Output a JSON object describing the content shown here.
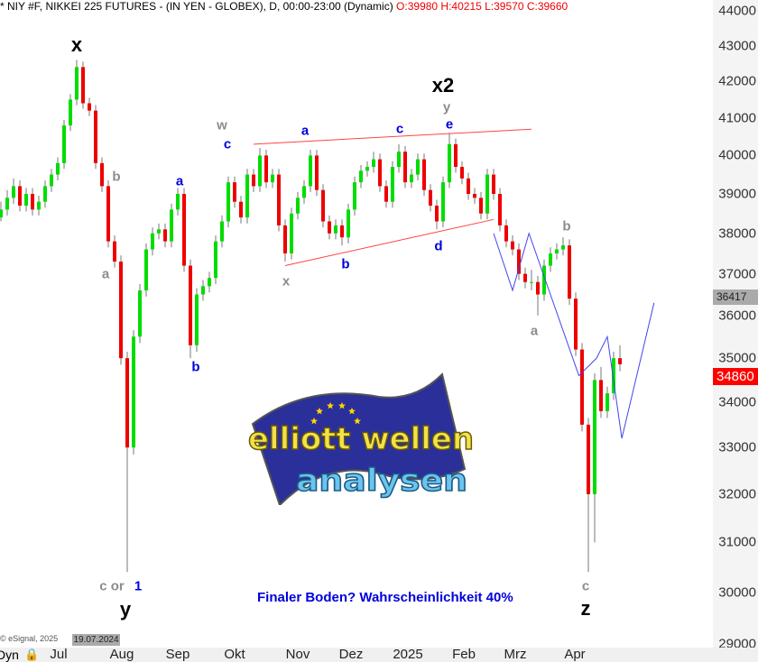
{
  "header": {
    "title": "* NIY #F, NIKKEI 225 FUTURES - (IN YEN - GLOBEX), D, 00:00-23:00 (Dynamic)",
    "ohlc": "O:39980 H:40215 L:39570 C:39660"
  },
  "footer": {
    "copyright": "© eSignal, 2025",
    "left_label": "Dyn",
    "date_box": "19.07.2024"
  },
  "logo": {
    "text_top": "elliott wellen",
    "text_bottom": "analysen"
  },
  "note": "Finaler Boden? Wahrscheinlichkeit 40%",
  "colors": {
    "up": "#00dd00",
    "down": "#ee0000",
    "triangle": "#ff4444",
    "projection": "#4444ee",
    "wave_gray": "#8c8c8c",
    "wave_blue": "#0000dd"
  },
  "chart_data": {
    "type": "candlestick",
    "scale": "log",
    "ylim": [
      29000,
      44000
    ],
    "y_ticks": [
      "44000",
      "43000",
      "42000",
      "41000",
      "40000",
      "39000",
      "38000",
      "37000",
      "36000",
      "35000",
      "34000",
      "33000",
      "32000",
      "31000",
      "30000",
      "29000"
    ],
    "x_ticks": [
      "Jul",
      "Aug",
      "Sep",
      "Okt",
      "Nov",
      "Dez",
      "2025",
      "Feb",
      "Mrz",
      "Apr"
    ],
    "price_badges": [
      {
        "value": "36417",
        "color": "#aaaaaa"
      },
      {
        "value": "34860",
        "color": "#ff0000"
      }
    ],
    "candles": [
      [
        38400,
        38800,
        38300,
        38600
      ],
      [
        38600,
        39100,
        38450,
        38900
      ],
      [
        38900,
        39400,
        38750,
        39200
      ],
      [
        39200,
        39350,
        38550,
        38700
      ],
      [
        38700,
        39150,
        38550,
        39000
      ],
      [
        39000,
        39150,
        38450,
        38600
      ],
      [
        38600,
        38950,
        38450,
        38800
      ],
      [
        38800,
        39350,
        38650,
        39200
      ],
      [
        39200,
        39650,
        39050,
        39500
      ],
      [
        39500,
        39950,
        39350,
        39800
      ],
      [
        39800,
        40950,
        39650,
        40800
      ],
      [
        40800,
        41650,
        40650,
        41500
      ],
      [
        41500,
        42600,
        41350,
        42400
      ],
      [
        42400,
        42550,
        41250,
        41400
      ],
      [
        41400,
        41550,
        41050,
        41200
      ],
      [
        41200,
        41350,
        39650,
        39800
      ],
      [
        39800,
        39950,
        39050,
        39200
      ],
      [
        39200,
        39350,
        37650,
        37800
      ],
      [
        37800,
        37950,
        37150,
        37300
      ],
      [
        37300,
        37450,
        34850,
        35000
      ],
      [
        35000,
        35150,
        30400,
        33000
      ],
      [
        33000,
        35650,
        32850,
        35500
      ],
      [
        35500,
        36750,
        35350,
        36600
      ],
      [
        36600,
        37750,
        36450,
        37600
      ],
      [
        37600,
        38150,
        37450,
        38000
      ],
      [
        38000,
        38250,
        37850,
        38100
      ],
      [
        38100,
        38250,
        37650,
        37800
      ],
      [
        37800,
        38750,
        37650,
        38600
      ],
      [
        38600,
        39150,
        38450,
        39000
      ],
      [
        39000,
        39150,
        37050,
        37200
      ],
      [
        37200,
        37350,
        35000,
        35300
      ],
      [
        35300,
        36650,
        35150,
        36500
      ],
      [
        36500,
        36850,
        36350,
        36700
      ],
      [
        36700,
        37050,
        36550,
        36900
      ],
      [
        36900,
        37950,
        36750,
        37800
      ],
      [
        37800,
        38450,
        37650,
        38300
      ],
      [
        38300,
        39450,
        38150,
        39300
      ],
      [
        39300,
        39450,
        38650,
        38800
      ],
      [
        38800,
        38950,
        38250,
        38400
      ],
      [
        38400,
        39650,
        38250,
        39500
      ],
      [
        39500,
        39650,
        39050,
        39200
      ],
      [
        39200,
        40200,
        39050,
        40000
      ],
      [
        40000,
        40150,
        39150,
        39300
      ],
      [
        39300,
        39650,
        39150,
        39500
      ],
      [
        39500,
        39650,
        38050,
        38200
      ],
      [
        38200,
        38350,
        37300,
        37500
      ],
      [
        37500,
        38650,
        37350,
        38500
      ],
      [
        38500,
        39050,
        38350,
        38900
      ],
      [
        38900,
        39350,
        38750,
        39200
      ],
      [
        39200,
        40150,
        39050,
        40000
      ],
      [
        40000,
        40150,
        38950,
        39100
      ],
      [
        39100,
        39250,
        38150,
        38300
      ],
      [
        38300,
        38450,
        37850,
        38000
      ],
      [
        38000,
        38350,
        37850,
        38200
      ],
      [
        38200,
        38350,
        37700,
        37900
      ],
      [
        37900,
        38750,
        37750,
        38600
      ],
      [
        38600,
        39450,
        38450,
        39300
      ],
      [
        39300,
        39750,
        39150,
        39600
      ],
      [
        39600,
        39850,
        39450,
        39700
      ],
      [
        39700,
        40100,
        39550,
        39900
      ],
      [
        39900,
        40050,
        39050,
        39200
      ],
      [
        39200,
        39350,
        38650,
        38800
      ],
      [
        38800,
        39850,
        38650,
        39700
      ],
      [
        39700,
        40300,
        39550,
        40100
      ],
      [
        40100,
        40250,
        39150,
        39300
      ],
      [
        39300,
        39650,
        39150,
        39500
      ],
      [
        39500,
        40050,
        39350,
        39900
      ],
      [
        39900,
        40050,
        38950,
        39100
      ],
      [
        39100,
        39250,
        38550,
        38700
      ],
      [
        38700,
        38850,
        38100,
        38300
      ],
      [
        38300,
        39450,
        38150,
        39300
      ],
      [
        39300,
        40600,
        39150,
        40300
      ],
      [
        40300,
        40450,
        39550,
        39700
      ],
      [
        39700,
        39850,
        39250,
        39400
      ],
      [
        39400,
        39550,
        38850,
        39000
      ],
      [
        39000,
        39150,
        38750,
        38900
      ],
      [
        38900,
        39050,
        38350,
        38500
      ],
      [
        38500,
        39650,
        38350,
        39500
      ],
      [
        39500,
        39650,
        38850,
        39000
      ],
      [
        39000,
        39150,
        38050,
        38200
      ],
      [
        38200,
        38350,
        37650,
        37800
      ],
      [
        37800,
        37950,
        37450,
        37600
      ],
      [
        37600,
        37750,
        36850,
        37000
      ],
      [
        37000,
        37150,
        36650,
        36800
      ],
      [
        36800,
        37100,
        36600,
        36800
      ],
      [
        36800,
        36950,
        36000,
        36500
      ],
      [
        36500,
        37350,
        36350,
        37200
      ],
      [
        37200,
        37650,
        37050,
        37500
      ],
      [
        37500,
        37750,
        37350,
        37600
      ],
      [
        37600,
        37900,
        37450,
        37700
      ],
      [
        37700,
        37850,
        36250,
        36400
      ],
      [
        36400,
        36550,
        35050,
        35200
      ],
      [
        35200,
        35350,
        33350,
        33500
      ],
      [
        33500,
        33650,
        30400,
        32000
      ],
      [
        32000,
        34650,
        31000,
        34500
      ],
      [
        34500,
        34800,
        33650,
        33800
      ],
      [
        33800,
        34350,
        33650,
        34200
      ],
      [
        34200,
        35150,
        34050,
        35000
      ],
      [
        35000,
        35300,
        34700,
        34860
      ]
    ],
    "triangle_lines": [
      {
        "from": {
          "candle": 40,
          "price": 40300
        },
        "to": {
          "candle": 84,
          "price": 40700
        }
      },
      {
        "from": {
          "candle": 45,
          "price": 37200
        },
        "to": {
          "candle": 78,
          "price": 38350
        }
      }
    ],
    "projection": [
      [
        78,
        38000
      ],
      [
        81,
        36600
      ],
      [
        83.6,
        38000
      ],
      [
        91.5,
        34600
      ],
      [
        94.3,
        35000
      ],
      [
        96,
        35500
      ],
      [
        98.3,
        33200
      ],
      [
        103.4,
        36300
      ]
    ],
    "wave_labels": [
      {
        "text": "x",
        "style": "black"
      },
      {
        "text": "b",
        "style": "gray"
      },
      {
        "text": "a",
        "style": "gray"
      },
      {
        "text": "c or",
        "style": "gray"
      },
      {
        "text": "1",
        "style": "blue"
      },
      {
        "text": "y",
        "style": "black"
      },
      {
        "text": "a",
        "style": "blue"
      },
      {
        "text": "b",
        "style": "blue"
      },
      {
        "text": "w",
        "style": "gray"
      },
      {
        "text": "c",
        "style": "blue"
      },
      {
        "text": "a",
        "style": "blue"
      },
      {
        "text": "c",
        "style": "blue"
      },
      {
        "text": "x2",
        "style": "black"
      },
      {
        "text": "y",
        "style": "gray"
      },
      {
        "text": "e",
        "style": "blue"
      },
      {
        "text": "x",
        "style": "gray"
      },
      {
        "text": "b",
        "style": "blue"
      },
      {
        "text": "d",
        "style": "blue"
      },
      {
        "text": "b",
        "style": "gray"
      },
      {
        "text": "a",
        "style": "gray"
      },
      {
        "text": "c",
        "style": "gray"
      },
      {
        "text": "z",
        "style": "black"
      }
    ]
  }
}
